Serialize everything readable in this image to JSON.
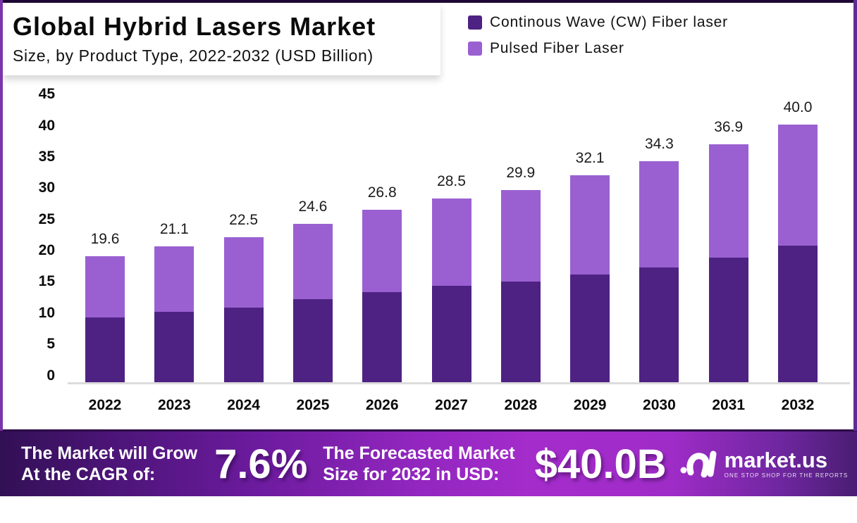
{
  "header": {
    "title": "Global Hybrid Lasers Market",
    "subtitle": "Size, by Product Type, 2022-2032 (USD Billion)"
  },
  "chart_data": {
    "type": "bar",
    "stacked": true,
    "categories": [
      "2022",
      "2023",
      "2024",
      "2025",
      "2026",
      "2027",
      "2028",
      "2029",
      "2030",
      "2031",
      "2032"
    ],
    "series": [
      {
        "name": "Continous Wave (CW) Fiber laser",
        "color": "#4e2283",
        "values": [
          10.1,
          11.0,
          11.7,
          13.0,
          14.1,
          15.0,
          15.7,
          16.8,
          17.9,
          19.4,
          21.2
        ]
      },
      {
        "name": "Pulsed Fiber Laser",
        "color": "#9a60d1",
        "values": [
          9.5,
          10.1,
          10.8,
          11.6,
          12.7,
          13.5,
          14.2,
          15.3,
          16.4,
          17.5,
          18.8
        ]
      }
    ],
    "totals": [
      19.6,
      21.1,
      22.5,
      24.6,
      26.8,
      28.5,
      29.9,
      32.1,
      34.3,
      36.9,
      40.0
    ],
    "total_labels": [
      "19.6",
      "21.1",
      "22.5",
      "24.6",
      "26.8",
      "28.5",
      "29.9",
      "32.1",
      "34.3",
      "36.9",
      "40.0"
    ],
    "y_ticks": [
      0,
      5,
      10,
      15,
      20,
      25,
      30,
      35,
      40,
      45
    ],
    "ylim": [
      0,
      45
    ],
    "grid": false,
    "legend_position": "top-right"
  },
  "banner": {
    "cagr_line1": "The Market will Grow",
    "cagr_line2": "At the CAGR of:",
    "cagr_value": "7.6%",
    "forecast_line1": "The Forecasted Market",
    "forecast_line2": "Size for 2032 in USD:",
    "forecast_value": "$40.0B",
    "brand_name": "market.us",
    "brand_tagline": "ONE STOP SHOP FOR THE REPORTS"
  }
}
